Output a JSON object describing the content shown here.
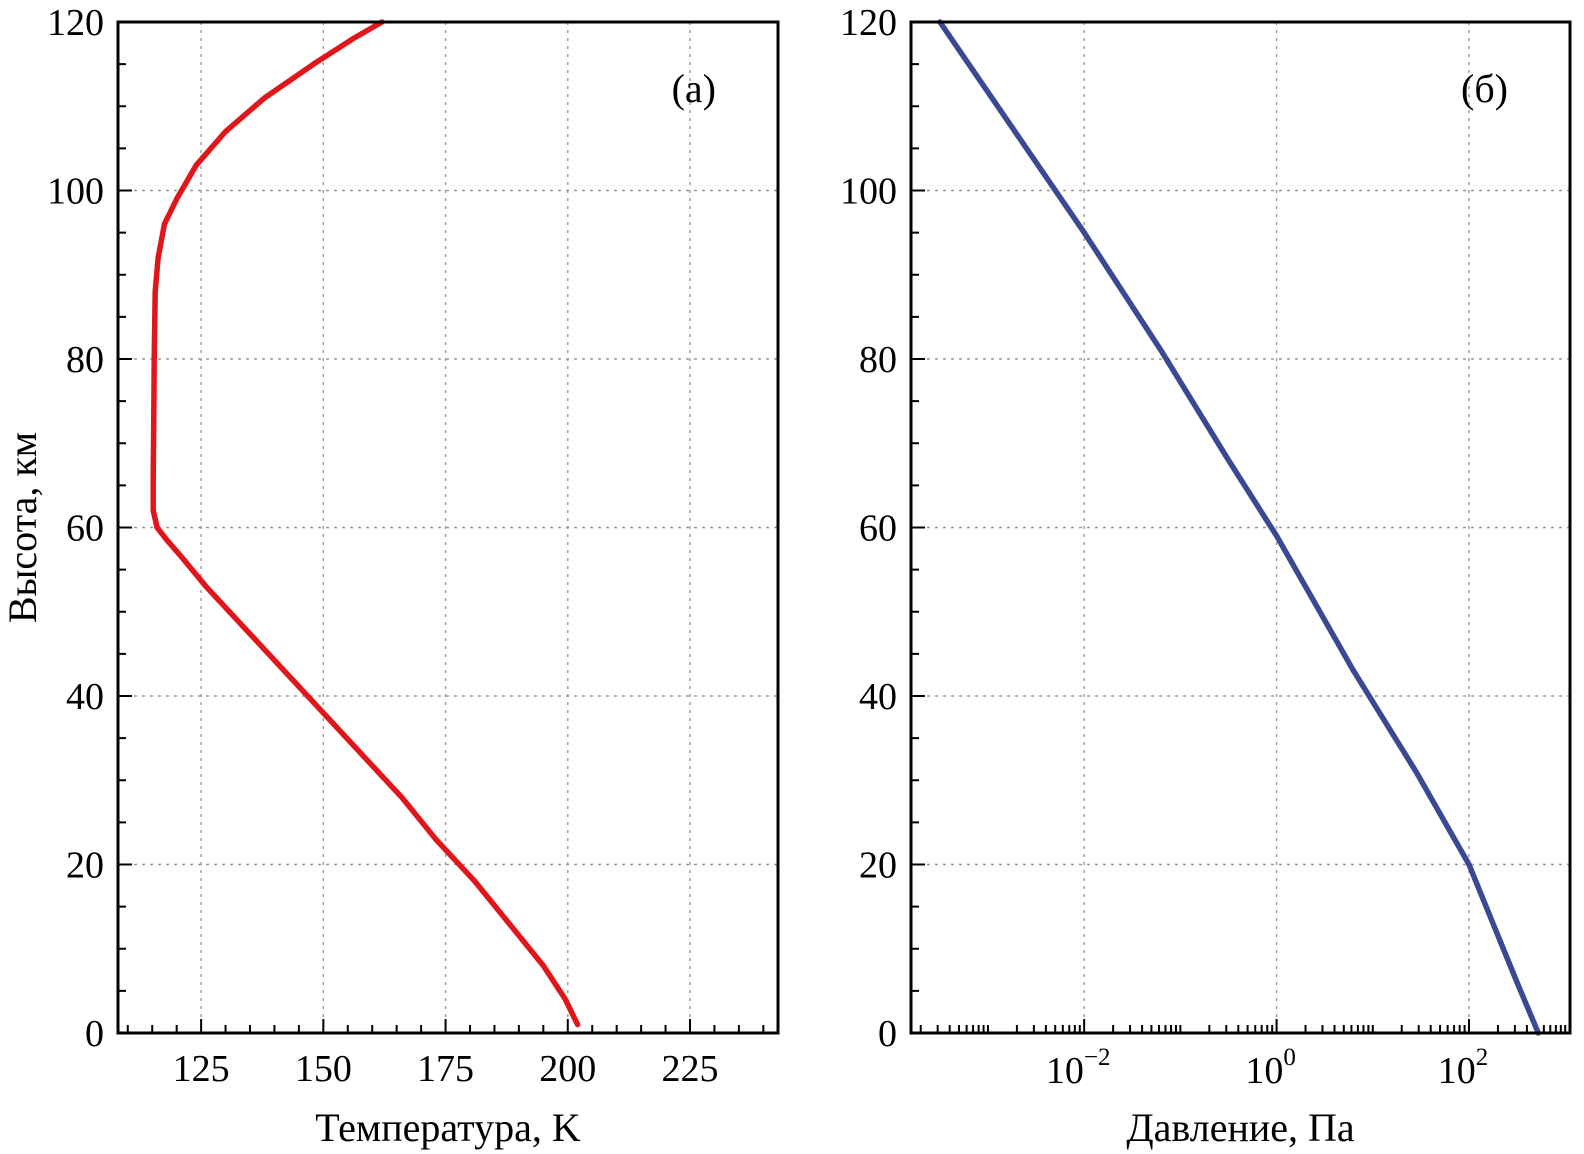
{
  "chart_data": [
    {
      "type": "line",
      "panel_label": "(а)",
      "xlabel": "Температура, K",
      "ylabel": "Высота, км",
      "xlim": [
        108,
        243
      ],
      "ylim": [
        0,
        120
      ],
      "x_scale": "linear",
      "xticks": [
        125,
        150,
        175,
        200,
        225
      ],
      "xtick_labels": [
        "125",
        "150",
        "175",
        "200",
        "225"
      ],
      "yticks": [
        0,
        20,
        40,
        60,
        80,
        100,
        120
      ],
      "ytick_labels": [
        "0",
        "20",
        "40",
        "60",
        "80",
        "100",
        "120"
      ],
      "grid": true,
      "series": [
        {
          "color": "#e0161b",
          "x": [
            202,
            199.5,
            195,
            188,
            181,
            173,
            166,
            158,
            150,
            142,
            134,
            126,
            121,
            118,
            116,
            115.2,
            115.2,
            115.3,
            115.4,
            115.6,
            116.2,
            117.5,
            120,
            124,
            130,
            138,
            148,
            156,
            162
          ],
          "y": [
            1,
            4,
            8,
            13,
            18,
            23,
            28,
            33,
            38,
            43,
            48,
            53,
            56.5,
            58.5,
            60,
            62,
            66,
            72,
            80,
            88,
            92,
            96,
            99,
            103,
            107,
            111,
            115,
            118,
            120
          ]
        }
      ]
    },
    {
      "type": "line",
      "panel_label": "(б)",
      "xlabel": "Давление, Па",
      "ylabel": "",
      "xlim": [
        -3.8,
        3.05
      ],
      "ylim": [
        0,
        120
      ],
      "x_scale": "log10",
      "xticks": [
        -2,
        0,
        2
      ],
      "xtick_labels": [
        {
          "base": "10",
          "exp": "−2"
        },
        {
          "base": "10",
          "exp": "0"
        },
        {
          "base": "10",
          "exp": "2"
        }
      ],
      "yticks": [
        0,
        20,
        40,
        60,
        80,
        100,
        120
      ],
      "ytick_labels": [
        "0",
        "20",
        "40",
        "60",
        "80",
        "100",
        "120"
      ],
      "grid": true,
      "series": [
        {
          "color": "#3b4992",
          "x_log10": [
            2.72,
            2.5,
            2.25,
            2.0,
            1.45,
            0.8,
            0.0,
            -0.5,
            -1.2,
            -2.0,
            -3.5
          ],
          "y": [
            0,
            6,
            13,
            20,
            31,
            43,
            59,
            68,
            81,
            95,
            120
          ]
        }
      ]
    }
  ]
}
